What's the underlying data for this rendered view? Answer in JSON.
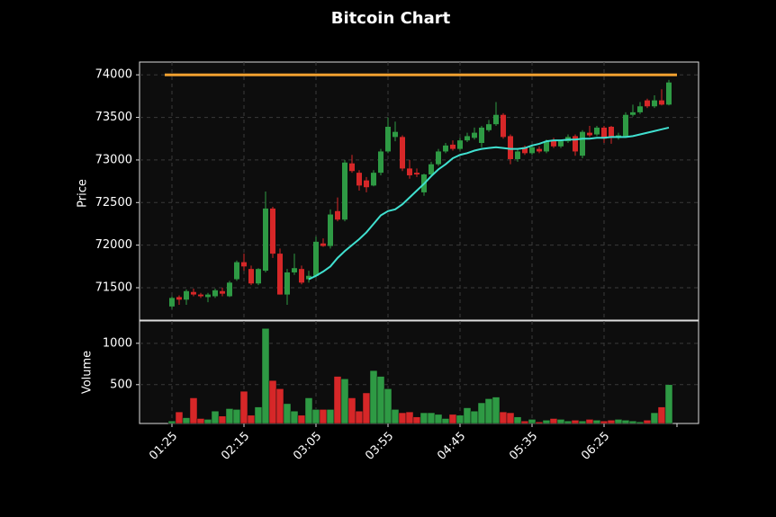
{
  "chart_data": {
    "type": "candlestick",
    "title": "Bitcoin Chart",
    "ylabel": "Price",
    "ylim": [
      71120,
      74150
    ],
    "yticks": [
      71500,
      72000,
      72500,
      73000,
      73500,
      74000
    ],
    "grid": true,
    "up_color": "#2e9a44",
    "down_color": "#d62728",
    "x": [
      "01:25",
      "01:30",
      "01:35",
      "01:40",
      "01:45",
      "01:50",
      "01:55",
      "02:00",
      "02:05",
      "02:10",
      "02:15",
      "02:20",
      "02:25",
      "02:30",
      "02:35",
      "02:40",
      "02:45",
      "02:50",
      "02:55",
      "03:00",
      "03:05",
      "03:10",
      "03:15",
      "03:20",
      "03:25",
      "03:30",
      "03:35",
      "03:40",
      "03:45",
      "03:50",
      "03:55",
      "04:00",
      "04:05",
      "04:10",
      "04:15",
      "04:20",
      "04:25",
      "04:30",
      "04:35",
      "04:40",
      "04:45",
      "04:50",
      "04:55",
      "05:00",
      "05:05",
      "05:10",
      "05:15",
      "05:20",
      "05:25",
      "05:30",
      "05:35",
      "05:40",
      "05:45",
      "05:50",
      "05:55",
      "06:00",
      "06:05",
      "06:10",
      "06:15",
      "06:20",
      "06:25",
      "06:30",
      "06:35",
      "06:40",
      "06:45",
      "06:50",
      "06:55",
      "07:00",
      "07:05",
      "07:10"
    ],
    "xticks": [
      "01:25",
      "02:15",
      "03:05",
      "03:55",
      "04:45",
      "05:35",
      "06:25"
    ],
    "open": [
      71280,
      71390,
      71360,
      71450,
      71420,
      71390,
      71400,
      71460,
      71400,
      71600,
      71800,
      71720,
      71550,
      71700,
      72430,
      71900,
      71420,
      71680,
      71720,
      71600,
      71640,
      72020,
      71990,
      72400,
      72300,
      72960,
      72850,
      72760,
      72700,
      72850,
      73100,
      73270,
      73270,
      72900,
      72850,
      72620,
      72830,
      72950,
      73100,
      73180,
      73130,
      73230,
      73260,
      73200,
      73350,
      73420,
      73530,
      73280,
      73010,
      73150,
      73080,
      73130,
      73100,
      73230,
      73160,
      73220,
      73280,
      73050,
      73320,
      73300,
      73380,
      73390,
      73260,
      73280,
      73530,
      73560,
      73700,
      73630,
      73700,
      73650
    ],
    "high": [
      71400,
      71410,
      71480,
      71490,
      71440,
      71440,
      71490,
      71500,
      71580,
      71820,
      71900,
      71760,
      71730,
      72630,
      72450,
      71960,
      71720,
      71900,
      71760,
      71700,
      72100,
      72080,
      72420,
      72560,
      73000,
      73060,
      72880,
      72800,
      72880,
      73130,
      73500,
      73450,
      73290,
      73000,
      72900,
      72840,
      72980,
      73130,
      73200,
      73230,
      73260,
      73320,
      73380,
      73400,
      73470,
      73680,
      73550,
      73300,
      73130,
      73170,
      73180,
      73160,
      73240,
      73260,
      73240,
      73300,
      73300,
      73350,
      73400,
      73400,
      73400,
      73400,
      73320,
      73560,
      73650,
      73680,
      73720,
      73760,
      73830,
      73940
    ],
    "low": [
      71250,
      71300,
      71300,
      71400,
      71380,
      71330,
      71380,
      71400,
      71390,
      71580,
      71700,
      71530,
      71530,
      71680,
      71850,
      71420,
      71300,
      71650,
      71540,
      71560,
      71620,
      71980,
      71960,
      72280,
      72280,
      72850,
      72640,
      72620,
      72690,
      72820,
      73080,
      73220,
      72870,
      72780,
      72800,
      72580,
      72800,
      72930,
      73080,
      73110,
      73110,
      73210,
      73240,
      73150,
      73330,
      73400,
      73250,
      72950,
      72980,
      73060,
      73060,
      73080,
      73080,
      73140,
      73140,
      73200,
      73050,
      73020,
      73270,
      73280,
      73200,
      73190,
      73240,
      73260,
      73510,
      73540,
      73610,
      73610,
      73640,
      73640
    ],
    "close": [
      71380,
      71360,
      71460,
      71420,
      71400,
      71420,
      71470,
      71430,
      71560,
      71800,
      71750,
      71550,
      71720,
      72430,
      71900,
      71420,
      71680,
      71730,
      71560,
      71640,
      72040,
      71990,
      72360,
      72300,
      72970,
      72870,
      72700,
      72680,
      72850,
      73100,
      73390,
      73330,
      72900,
      72820,
      72830,
      72830,
      72950,
      73100,
      73170,
      73130,
      73230,
      73280,
      73320,
      73380,
      73420,
      73530,
      73270,
      73010,
      73100,
      73080,
      73150,
      73100,
      73220,
      73160,
      73220,
      73270,
      73100,
      73330,
      73290,
      73380,
      73250,
      73260,
      73290,
      73530,
      73560,
      73630,
      73630,
      73700,
      73650,
      73910
    ],
    "ma": {
      "color": "#40e0d0",
      "values": [
        null,
        null,
        null,
        null,
        null,
        null,
        null,
        null,
        null,
        null,
        null,
        null,
        null,
        null,
        null,
        null,
        null,
        null,
        null,
        71600,
        71640,
        71690,
        71750,
        71850,
        71930,
        72000,
        72070,
        72150,
        72250,
        72350,
        72400,
        72420,
        72480,
        72560,
        72640,
        72720,
        72810,
        72890,
        72950,
        73020,
        73060,
        73080,
        73110,
        73130,
        73140,
        73150,
        73140,
        73130,
        73130,
        73140,
        73170,
        73190,
        73220,
        73230,
        73230,
        73240,
        73240,
        73250,
        73250,
        73260,
        73260,
        73270,
        73270,
        73270,
        73280,
        73300,
        73320,
        73340,
        73360,
        73380
      ]
    },
    "hline": {
      "value": 74000,
      "color": "#f0a030"
    },
    "volume": {
      "ylabel": "Volume",
      "ylim": [
        30,
        1270
      ],
      "yticks": [
        500,
        1000
      ],
      "values": [
        60,
        170,
        100,
        340,
        90,
        80,
        180,
        120,
        210,
        200,
        420,
        130,
        230,
        1180,
        550,
        450,
        270,
        180,
        130,
        340,
        200,
        200,
        200,
        600,
        570,
        340,
        180,
        400,
        670,
        600,
        450,
        200,
        160,
        170,
        110,
        160,
        160,
        140,
        90,
        140,
        130,
        220,
        180,
        280,
        330,
        350,
        170,
        160,
        110,
        60,
        80,
        50,
        70,
        90,
        80,
        60,
        70,
        60,
        80,
        70,
        60,
        70,
        80,
        70,
        60,
        50,
        70,
        160,
        230,
        500
      ]
    }
  }
}
